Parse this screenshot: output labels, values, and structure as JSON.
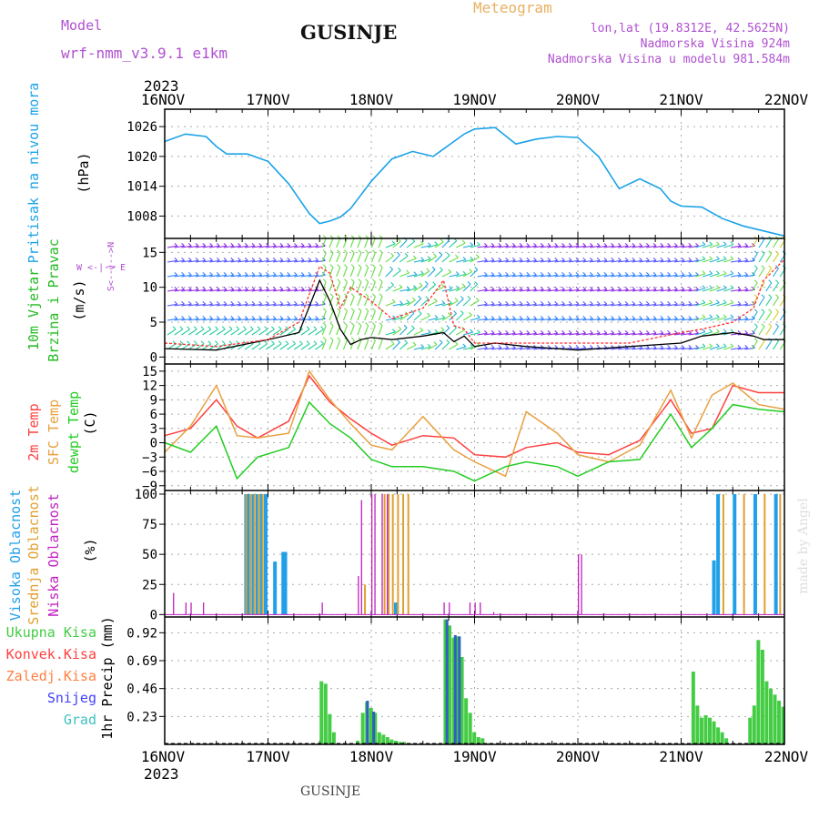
{
  "header": {
    "model_label": "Model",
    "model_name": "wrf-nmm_v3.9.1 e1km",
    "meteogram_label": "Meteogram",
    "location_title": "GUSINJE",
    "lonlat": "lon,lat (19.8312E, 42.5625N)",
    "elevation": "Nadmorska Visina 924m",
    "model_elevation": "Nadmorska Visina u modelu 981.584m"
  },
  "footer": {
    "location": "GUSINJE",
    "watermark": "made by Angel"
  },
  "colors": {
    "pressure": "#1aa3e8",
    "wind_speed": "#000000",
    "wind_gust": "#ff3030",
    "temp_2m": "#ff4040",
    "temp_sfc": "#e8a040",
    "temp_dew": "#22cc22",
    "cloud_high": "#20a0e8",
    "cloud_mid": "#e0a030",
    "cloud_low": "#c020c0",
    "precip_total": "#44cc44",
    "precip_conv": "#ff4040",
    "precip_frozen": "#ff8040",
    "precip_snow": "#4040ff",
    "precip_graupel": "#40c0c0",
    "header": "#b050d0",
    "meteogram": "#e8b060"
  },
  "chart_data": [
    {
      "type": "line",
      "panel": "pressure",
      "ylabel": [
        "Pritisak na nivou mora",
        "(hPa)"
      ],
      "yticks": [
        1008,
        1014,
        1020,
        1026
      ],
      "ylim": [
        1003.5,
        1029.5
      ],
      "x_points": [
        0,
        0.2,
        0.4,
        0.5,
        0.6,
        0.8,
        1.0,
        1.2,
        1.4,
        1.5,
        1.6,
        1.7,
        1.8,
        2.0,
        2.2,
        2.4,
        2.6,
        2.7,
        2.8,
        2.9,
        3.0,
        3.2,
        3.4,
        3.6,
        3.8,
        4.0,
        4.2,
        4.4,
        4.6,
        4.8,
        4.9,
        5.0,
        5.2,
        5.4,
        5.6,
        5.8,
        6.0
      ],
      "series": [
        {
          "values": [
            1023,
            1024.5,
            1024,
            1022,
            1020.5,
            1020.5,
            1019,
            1014.5,
            1008.5,
            1006.5,
            1007,
            1007.8,
            1009.5,
            1015,
            1019.5,
            1021,
            1020,
            1021.5,
            1023,
            1024.5,
            1025.5,
            1025.8,
            1022.5,
            1023.5,
            1024,
            1023.8,
            1020,
            1013.5,
            1015.5,
            1013.5,
            1011,
            1010,
            1009.8,
            1007.5,
            1006,
            1005,
            1004
          ]
        }
      ]
    },
    {
      "type": "line",
      "panel": "wind",
      "ylabel": [
        "10m Vjetar",
        "Brzina i Pravac",
        "(m/s)"
      ],
      "compass": "W <-|-> E, S ^|v N",
      "yticks": [
        0,
        5,
        10,
        15
      ],
      "ylim": [
        -1,
        17
      ],
      "x_points": [
        0,
        0.5,
        1.0,
        1.3,
        1.5,
        1.6,
        1.7,
        1.8,
        1.9,
        2.0,
        2.2,
        2.5,
        2.7,
        2.8,
        2.9,
        3.0,
        3.2,
        3.5,
        4.0,
        4.5,
        5.0,
        5.2,
        5.5,
        5.7,
        5.8,
        6.0
      ],
      "series": [
        {
          "name": "speed",
          "values": [
            1.2,
            1.0,
            2.5,
            3.5,
            11,
            8,
            4,
            1.8,
            2.5,
            2.8,
            2.5,
            3.0,
            3.5,
            2.2,
            3.0,
            1.5,
            2.0,
            1.5,
            1.0,
            1.5,
            2.0,
            3.0,
            3.5,
            3.0,
            2.5,
            2.5
          ]
        },
        {
          "name": "gust",
          "values": [
            2.0,
            1.5,
            2.5,
            5.0,
            13,
            12,
            7,
            10,
            9.0,
            8.0,
            5.5,
            7.0,
            11,
            4.5,
            4.0,
            2.0,
            2.0,
            2.0,
            2.0,
            2.0,
            3.5,
            4.0,
            5.0,
            7.0,
            11,
            14
          ]
        }
      ]
    },
    {
      "type": "line",
      "panel": "temperature",
      "ylabel": [
        "2m Temp",
        "SFC Temp",
        "dewpt Temp",
        "(C)"
      ],
      "yticks": [
        -9,
        -6,
        -3,
        0,
        3,
        6,
        9,
        12,
        15
      ],
      "ylim": [
        -10,
        16.5
      ],
      "x_points": [
        0,
        0.25,
        0.5,
        0.7,
        0.9,
        1.2,
        1.4,
        1.6,
        1.8,
        2.0,
        2.2,
        2.5,
        2.8,
        3.0,
        3.3,
        3.5,
        3.8,
        4.0,
        4.3,
        4.6,
        4.9,
        5.1,
        5.3,
        5.5,
        5.75,
        6.0
      ],
      "series": [
        {
          "name": "2m Temp",
          "values": [
            1.5,
            3.0,
            9.0,
            3.5,
            1.0,
            4.5,
            14.0,
            8.5,
            5.0,
            2.0,
            -0.5,
            1.5,
            1.0,
            -2.5,
            -3.0,
            -1.0,
            0.0,
            -2.0,
            -2.5,
            0.5,
            9.0,
            2.0,
            3.0,
            12.0,
            10.5,
            10.5
          ]
        },
        {
          "name": "SFC Temp",
          "values": [
            -2.0,
            3.5,
            12.0,
            1.5,
            1.0,
            2.0,
            15.0,
            9.0,
            4.0,
            -0.5,
            -1.5,
            5.5,
            -1.5,
            -4.0,
            -7.0,
            6.5,
            2.0,
            -2.5,
            -4.0,
            -0.5,
            11.0,
            1.0,
            10.0,
            12.5,
            8.0,
            7.0
          ]
        },
        {
          "name": "dewpt Temp",
          "values": [
            0.0,
            -2.0,
            3.5,
            -7.5,
            -3.0,
            -1.0,
            8.5,
            4.0,
            1.0,
            -3.5,
            -5.0,
            -5.0,
            -6.0,
            -8.0,
            -5.0,
            -4.0,
            -5.0,
            -7.0,
            -4.0,
            -3.5,
            6.0,
            -1.0,
            3.0,
            8.0,
            7.0,
            6.5
          ]
        }
      ]
    },
    {
      "type": "bar",
      "panel": "cloud",
      "ylabel": [
        "Visoka Oblacnost",
        "Srednja Oblacnost",
        "Niska Oblacnost",
        "(%)"
      ],
      "yticks": [
        0,
        25,
        50,
        75,
        100
      ],
      "ylim": [
        -2,
        103
      ],
      "series": [
        {
          "name": "Visoka Oblacnost",
          "bars": [
            [
              0.77,
              100
            ],
            [
              0.8,
              100
            ],
            [
              0.84,
              100
            ],
            [
              0.88,
              100
            ],
            [
              0.92,
              100
            ],
            [
              0.96,
              100
            ],
            [
              1.05,
              44
            ],
            [
              1.13,
              52
            ],
            [
              1.15,
              52
            ],
            [
              2.22,
              10
            ],
            [
              5.3,
              45
            ],
            [
              5.34,
              100
            ],
            [
              5.5,
              100
            ],
            [
              5.7,
              100
            ],
            [
              5.9,
              100
            ]
          ]
        },
        {
          "name": "Srednja Oblacnost",
          "bars": [
            [
              0.78,
              100
            ],
            [
              0.82,
              100
            ],
            [
              0.86,
              100
            ],
            [
              0.9,
              100
            ],
            [
              0.94,
              100
            ],
            [
              1.93,
              25
            ],
            [
              2.12,
              100
            ],
            [
              2.16,
              100
            ],
            [
              2.2,
              100
            ],
            [
              2.25,
              100
            ],
            [
              2.3,
              100
            ],
            [
              2.35,
              100
            ],
            [
              5.4,
              100
            ],
            [
              5.6,
              100
            ],
            [
              5.8,
              100
            ],
            [
              5.95,
              100
            ]
          ]
        },
        {
          "name": "Niska Oblacnost",
          "bars": [
            [
              0.08,
              18
            ],
            [
              0.2,
              10
            ],
            [
              0.25,
              10
            ],
            [
              0.37,
              10
            ],
            [
              1.52,
              10
            ],
            [
              1.87,
              32
            ],
            [
              1.9,
              95
            ],
            [
              2.0,
              100
            ],
            [
              2.03,
              100
            ],
            [
              2.1,
              100
            ],
            [
              2.15,
              100
            ],
            [
              2.7,
              10
            ],
            [
              2.75,
              10
            ],
            [
              2.95,
              10
            ],
            [
              3.0,
              10
            ],
            [
              3.05,
              10
            ],
            [
              3.18,
              2
            ],
            [
              4.0,
              50
            ],
            [
              4.03,
              50
            ]
          ]
        }
      ]
    },
    {
      "type": "bar",
      "panel": "precip",
      "ylabel": [
        "1hr Precip (mm)"
      ],
      "legend": [
        "Ukupna Kisa",
        "Konvek.Kisa",
        "Zaledj.Kisa",
        "Snijeg",
        "Grad"
      ],
      "yticks": [
        0.23,
        0.46,
        0.69,
        0.92
      ],
      "ylim": [
        0,
        1.05
      ],
      "series": [
        {
          "name": "Ukupna Kisa",
          "bars": [
            [
              1.5,
              0.52
            ],
            [
              1.54,
              0.5
            ],
            [
              1.58,
              0.25
            ],
            [
              1.62,
              0.1
            ],
            [
              1.85,
              0.03
            ],
            [
              1.9,
              0.26
            ],
            [
              1.94,
              0.35
            ],
            [
              1.98,
              0.3
            ],
            [
              2.02,
              0.26
            ],
            [
              2.06,
              0.1
            ],
            [
              2.1,
              0.08
            ],
            [
              2.14,
              0.06
            ],
            [
              2.18,
              0.04
            ],
            [
              2.22,
              0.03
            ],
            [
              2.26,
              0.02
            ],
            [
              2.3,
              0.02
            ],
            [
              2.35,
              0.01
            ],
            [
              2.7,
              1.03
            ],
            [
              2.74,
              0.98
            ],
            [
              2.78,
              0.88
            ],
            [
              2.82,
              0.89
            ],
            [
              2.86,
              0.72
            ],
            [
              2.9,
              0.38
            ],
            [
              2.94,
              0.26
            ],
            [
              2.98,
              0.1
            ],
            [
              3.02,
              0.06
            ],
            [
              3.06,
              0.05
            ],
            [
              3.12,
              0.01
            ],
            [
              5.1,
              0.6
            ],
            [
              5.14,
              0.32
            ],
            [
              5.18,
              0.22
            ],
            [
              5.22,
              0.24
            ],
            [
              5.26,
              0.22
            ],
            [
              5.3,
              0.19
            ],
            [
              5.34,
              0.14
            ],
            [
              5.38,
              0.1
            ],
            [
              5.42,
              0.05
            ],
            [
              5.65,
              0.22
            ],
            [
              5.69,
              0.32
            ],
            [
              5.73,
              0.86
            ],
            [
              5.77,
              0.78
            ],
            [
              5.81,
              0.52
            ],
            [
              5.85,
              0.46
            ],
            [
              5.89,
              0.41
            ],
            [
              5.93,
              0.36
            ],
            [
              5.97,
              0.31
            ]
          ]
        },
        {
          "name": "Snijeg",
          "bars": [
            [
              1.95,
              0.36
            ],
            [
              2.01,
              0.27
            ],
            [
              2.72,
              1.03
            ],
            [
              2.8,
              0.9
            ],
            [
              2.84,
              0.89
            ]
          ]
        }
      ]
    }
  ],
  "x_axis": {
    "labels": [
      "16NOV",
      "17NOV",
      "18NOV",
      "19NOV",
      "20NOV",
      "21NOV",
      "22NOV"
    ],
    "year_label": "2023"
  }
}
